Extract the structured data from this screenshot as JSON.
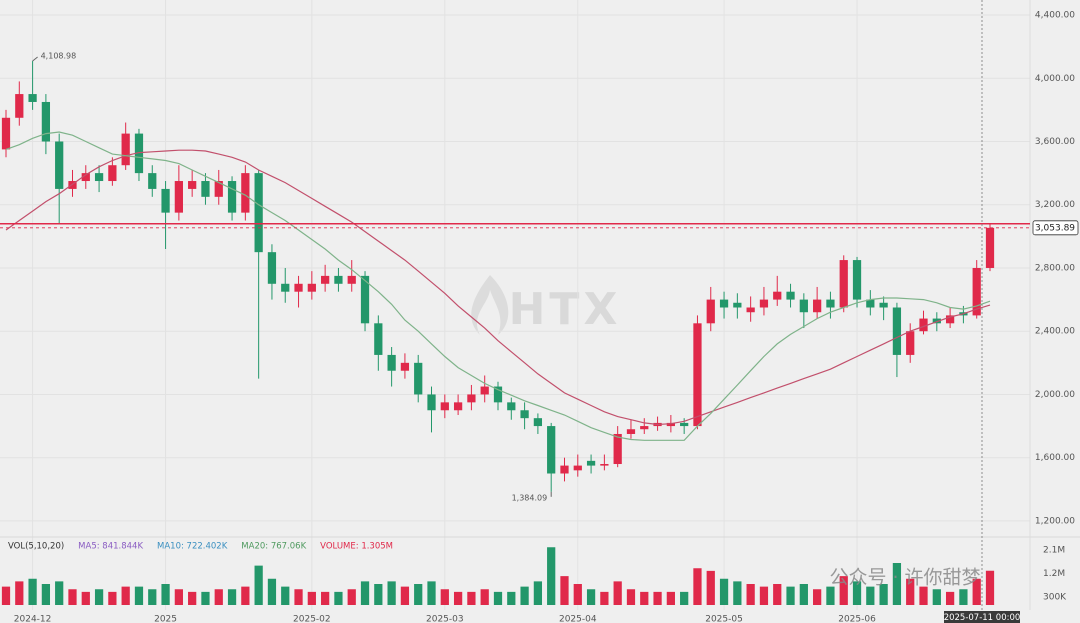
{
  "chart_data": {
    "type": "candlestick",
    "up_color": "#e0294a",
    "down_color": "#23976a",
    "categories": [
      null,
      null,
      "2024-12",
      null,
      null,
      null,
      null,
      null,
      null,
      null,
      null,
      null,
      "2025",
      null,
      null,
      null,
      null,
      null,
      null,
      null,
      null,
      null,
      null,
      "2025-02",
      null,
      null,
      null,
      null,
      null,
      null,
      null,
      null,
      null,
      "2025-03",
      null,
      null,
      null,
      null,
      null,
      null,
      null,
      null,
      null,
      "2025-04",
      null,
      null,
      null,
      null,
      null,
      null,
      null,
      null,
      null,
      null,
      "2025-05",
      null,
      null,
      null,
      null,
      null,
      null,
      null,
      null,
      null,
      "2025-06",
      null,
      null,
      null,
      null,
      null,
      null,
      null,
      null,
      null,
      null
    ],
    "open": [
      3550,
      3750,
      3900,
      3850,
      3600,
      3300,
      3350,
      3400,
      3350,
      3450,
      3650,
      3400,
      3300,
      3150,
      3300,
      3350,
      3250,
      3350,
      3150,
      3400,
      2900,
      2700,
      2650,
      2650,
      2700,
      2750,
      2700,
      2750,
      2450,
      2250,
      2150,
      2200,
      2000,
      1900,
      1900,
      1950,
      2000,
      2050,
      1950,
      1900,
      1850,
      1800,
      1500,
      1520,
      1580,
      1550,
      1560,
      1750,
      1780,
      1800,
      1800,
      1820,
      1800,
      2450,
      2600,
      2580,
      2520,
      2550,
      2600,
      2650,
      2600,
      2520,
      2600,
      2550,
      2850,
      2600,
      2580,
      2550,
      2250,
      2400,
      2480,
      2450,
      2520,
      2500,
      2800
    ],
    "high": [
      3800,
      3980,
      4108.98,
      3900,
      3650,
      3420,
      3450,
      3450,
      3500,
      3720,
      3680,
      3450,
      3350,
      3450,
      3420,
      3400,
      3420,
      3380,
      3450,
      3420,
      2950,
      2800,
      2750,
      2780,
      2820,
      2800,
      2850,
      2780,
      2500,
      2300,
      2260,
      2250,
      2050,
      2000,
      2000,
      2060,
      2120,
      2080,
      1980,
      1950,
      1880,
      1820,
      1600,
      1620,
      1620,
      1620,
      1800,
      1840,
      1850,
      1860,
      1870,
      1850,
      2500,
      2680,
      2650,
      2640,
      2620,
      2680,
      2750,
      2700,
      2640,
      2680,
      2650,
      2880,
      2870,
      2660,
      2620,
      2580,
      2450,
      2530,
      2520,
      2550,
      2560,
      2850,
      3080
    ],
    "low": [
      3500,
      3700,
      3800,
      3520,
      3080,
      3250,
      3300,
      3280,
      3320,
      3420,
      3350,
      3250,
      2920,
      3100,
      3250,
      3200,
      3200,
      3100,
      3100,
      2100,
      2600,
      2580,
      2550,
      2600,
      2650,
      2650,
      2650,
      2400,
      2150,
      2050,
      2100,
      1950,
      1760,
      1850,
      1870,
      1900,
      1950,
      1900,
      1840,
      1780,
      1750,
      1384.09,
      1450,
      1480,
      1500,
      1520,
      1540,
      1720,
      1750,
      1770,
      1760,
      1750,
      1780,
      2400,
      2480,
      2480,
      2460,
      2500,
      2560,
      2550,
      2420,
      2480,
      2480,
      2520,
      2550,
      2500,
      2470,
      2110,
      2200,
      2380,
      2400,
      2420,
      2450,
      2480,
      2780
    ],
    "close": [
      3750,
      3900,
      3850,
      3600,
      3300,
      3350,
      3400,
      3350,
      3450,
      3650,
      3400,
      3300,
      3150,
      3350,
      3350,
      3250,
      3350,
      3150,
      3400,
      2900,
      2700,
      2650,
      2700,
      2700,
      2750,
      2700,
      2750,
      2450,
      2250,
      2150,
      2200,
      2000,
      1900,
      1950,
      1950,
      2000,
      2050,
      1950,
      1900,
      1850,
      1800,
      1500,
      1550,
      1550,
      1550,
      1560,
      1750,
      1780,
      1800,
      1820,
      1820,
      1800,
      2450,
      2600,
      2550,
      2550,
      2550,
      2600,
      2650,
      2600,
      2520,
      2600,
      2550,
      2850,
      2600,
      2550,
      2550,
      2250,
      2400,
      2480,
      2450,
      2500,
      2500,
      2800,
      3053.89
    ],
    "ylim": [
      1111,
      4495
    ],
    "yticks": [
      {
        "value": 1200,
        "label": "1,200.00"
      },
      {
        "value": 1600,
        "label": "1,600.00"
      },
      {
        "value": 2000,
        "label": "2,000.00"
      },
      {
        "value": 2400,
        "label": "2,400.00"
      },
      {
        "value": 2800,
        "label": "2,800.00"
      },
      {
        "value": 3200,
        "label": "3,200.00"
      },
      {
        "value": 3600,
        "label": "3,600.00"
      },
      {
        "value": 4000,
        "label": "4,000.00"
      },
      {
        "value": 4400,
        "label": "4,400.00"
      }
    ],
    "ma_lines": [
      {
        "color": "#c2506c",
        "values": [
          3040,
          3100,
          3160,
          3220,
          3270,
          3330,
          3390,
          3440,
          3480,
          3510,
          3530,
          3535,
          3540,
          3545,
          3545,
          3540,
          3520,
          3500,
          3470,
          3420,
          3380,
          3340,
          3290,
          3240,
          3190,
          3140,
          3090,
          3030,
          2970,
          2910,
          2850,
          2780,
          2710,
          2640,
          2560,
          2490,
          2420,
          2340,
          2270,
          2200,
          2130,
          2070,
          2010,
          1970,
          1930,
          1890,
          1860,
          1840,
          1820,
          1810,
          1815,
          1830,
          1860,
          1890,
          1920,
          1950,
          1980,
          2010,
          2040,
          2070,
          2100,
          2130,
          2160,
          2200,
          2240,
          2280,
          2320,
          2360,
          2400,
          2430,
          2460,
          2490,
          2510,
          2540,
          2565
        ]
      },
      {
        "color": "#7fb38a",
        "values": [
          3550,
          3580,
          3620,
          3650,
          3660,
          3640,
          3600,
          3560,
          3520,
          3510,
          3500,
          3490,
          3480,
          3460,
          3420,
          3380,
          3340,
          3300,
          3260,
          3200,
          3150,
          3100,
          3040,
          2980,
          2920,
          2850,
          2790,
          2720,
          2650,
          2570,
          2470,
          2400,
          2320,
          2240,
          2170,
          2120,
          2070,
          2030,
          1995,
          1960,
          1930,
          1900,
          1870,
          1830,
          1790,
          1760,
          1730,
          1715,
          1710,
          1710,
          1710,
          1710,
          1800,
          1880,
          1970,
          2060,
          2150,
          2240,
          2320,
          2380,
          2430,
          2480,
          2520,
          2550,
          2580,
          2600,
          2610,
          2610,
          2605,
          2600,
          2580,
          2550,
          2540,
          2560,
          2590
        ]
      }
    ],
    "annotations": [
      {
        "value": 4108.98,
        "label": "4,108.98"
      },
      {
        "value": 1384.09,
        "label": "1,384.09"
      }
    ],
    "last_price": {
      "value": 3053.89,
      "label": "3,053.89"
    },
    "hline": 3080,
    "crosshair_label": "2025-07-11 00:00",
    "watermark": "HTX",
    "volume": {
      "values": [
        700000,
        900000,
        1000000,
        800000,
        900000,
        600000,
        500000,
        600000,
        500000,
        700000,
        700000,
        600000,
        800000,
        600000,
        500000,
        500000,
        600000,
        600000,
        700000,
        1500000,
        1000000,
        700000,
        600000,
        500000,
        500000,
        500000,
        600000,
        900000,
        800000,
        900000,
        700000,
        800000,
        900000,
        600000,
        500000,
        500000,
        600000,
        500000,
        500000,
        700000,
        900000,
        2200000,
        1100000,
        800000,
        600000,
        500000,
        900000,
        600000,
        500000,
        500000,
        500000,
        500000,
        1400000,
        1300000,
        1000000,
        900000,
        800000,
        700000,
        800000,
        700000,
        800000,
        600000,
        700000,
        1100000,
        900000,
        700000,
        800000,
        1600000,
        1000000,
        700000,
        600000,
        500000,
        600000,
        1000000,
        1305000
      ],
      "ylim": [
        0,
        2400000
      ],
      "yticks": [
        {
          "value": 300000,
          "label": "300K"
        },
        {
          "value": 1200000,
          "label": "1.2M"
        },
        {
          "value": 2100000,
          "label": "2.1M"
        }
      ],
      "legend": [
        {
          "text": "VOL(5,10,20)",
          "color": "#333333"
        },
        {
          "text": "MA5: 841.844K",
          "color": "#8a5cc2"
        },
        {
          "text": "MA10: 722.402K",
          "color": "#3a8fc0"
        },
        {
          "text": "MA20: 767.06K",
          "color": "#4f9a5f"
        },
        {
          "text": "VOLUME: 1.305M",
          "color": "#e0294a"
        }
      ]
    },
    "footer_watermark": "公众号 · 许你甜梦"
  }
}
